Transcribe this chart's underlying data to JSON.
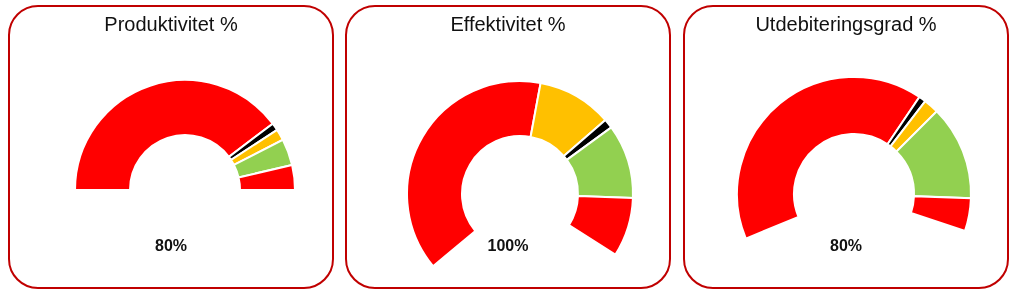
{
  "chart_data": [
    {
      "type": "donut",
      "title": "Produktivitet %",
      "categories": [
        null,
        null,
        null,
        null,
        null
      ],
      "values": [
        79.4,
        2.2,
        3.3,
        7.8,
        7.3
      ],
      "colors": [
        "#ff0000",
        "#000000",
        "#ffc000",
        "#92d050",
        "#ff0000"
      ],
      "annotations": [
        "80%"
      ]
    },
    {
      "type": "donut",
      "title": "Effektivitet %",
      "categories": [
        null,
        null,
        null,
        null,
        null
      ],
      "values": [
        55.6,
        15.3,
        1.9,
        15.1,
        12.1
      ],
      "colors": [
        "#ff0000",
        "#ffc000",
        "#000000",
        "#92d050",
        "#ff0000"
      ],
      "annotations": [
        "100%"
      ]
    },
    {
      "type": "donut",
      "title": "Utdebiteringsgrad %",
      "categories": [
        null,
        null,
        null,
        null,
        null
      ],
      "values": [
        66.3,
        1.6,
        3.4,
        21.3,
        7.4
      ],
      "colors": [
        "#ff0000",
        "#000000",
        "#ffc000",
        "#92d050",
        "#ff0000"
      ],
      "annotations": [
        "80%"
      ]
    }
  ]
}
